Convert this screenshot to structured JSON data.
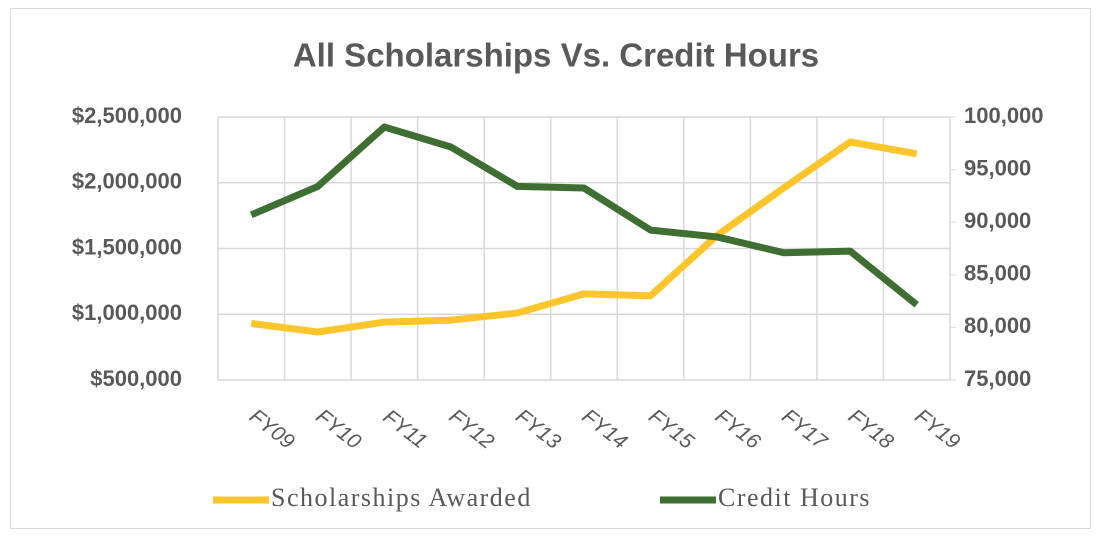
{
  "chart_data": {
    "type": "line",
    "title": "All Scholarships Vs. Credit Hours",
    "categories": [
      "FY09",
      "FY10",
      "FY11",
      "FY12",
      "FY13",
      "FY14",
      "FY15",
      "FY16",
      "FY17",
      "FY18",
      "FY19"
    ],
    "series": [
      {
        "name": "Scholarships Awarded",
        "color": "#fdc52c",
        "values": [
          930000,
          865000,
          940000,
          955000,
          1010000,
          1155000,
          1140000,
          1600000,
          1960000,
          2310000,
          2220000
        ]
      },
      {
        "name": "Credit Hours",
        "color": "#3f6e32",
        "axis": "y2",
        "values": [
          90700,
          93400,
          99050,
          97150,
          93400,
          93250,
          89250,
          88600,
          87100,
          87250,
          82150
        ]
      }
    ],
    "ylim": [
      500000,
      2500000
    ],
    "yticks": [
      {
        "value": 500000,
        "label": "$500,000"
      },
      {
        "value": 1000000,
        "label": "$1,000,000"
      },
      {
        "value": 1500000,
        "label": "$1,500,000"
      },
      {
        "value": 2000000,
        "label": "$2,000,000"
      },
      {
        "value": 2500000,
        "label": "$2,500,000"
      }
    ],
    "y2lim": [
      75000,
      100000
    ],
    "y2ticks": [
      {
        "value": 75000,
        "label": "75,000"
      },
      {
        "value": 80000,
        "label": "80,000"
      },
      {
        "value": 85000,
        "label": "85,000"
      },
      {
        "value": 90000,
        "label": "90,000"
      },
      {
        "value": 95000,
        "label": "95,000"
      },
      {
        "value": 100000,
        "label": "100,000"
      }
    ],
    "grid": true,
    "legend": "bottom"
  }
}
